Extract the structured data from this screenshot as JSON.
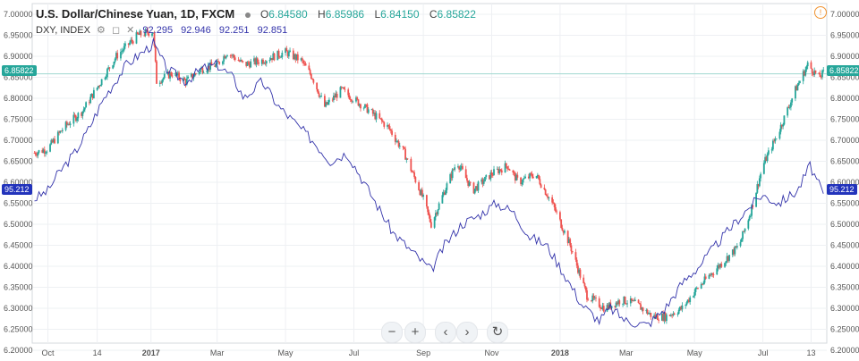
{
  "legend": {
    "symbol": "U.S. Dollar/Chinese Yuan, 1D, FXCM",
    "open_label": "O",
    "open": "6.84580",
    "high_label": "H",
    "high": "6.85986",
    "low_label": "L",
    "low": "6.84150",
    "close_label": "C",
    "close": "6.85822",
    "overlay_name": "DXY, INDEX",
    "overlay_values": [
      "92.295",
      "92.946",
      "92.251",
      "92.851"
    ]
  },
  "last_price_tag": "6.85822",
  "overlay_tag": "95.212",
  "controls": {
    "zoom_out": "−",
    "zoom_in": "+",
    "scroll_left": "‹",
    "scroll_right": "›",
    "reset": "↻"
  },
  "colors": {
    "up": "#26a69a",
    "down": "#ef5350",
    "overlay": "#3333aa",
    "grid": "#eef0f3",
    "axis_text": "#555555"
  },
  "chart_data": {
    "type": "candlestick",
    "yaxis_ticks": [
      "7.00000",
      "6.95000",
      "6.90000",
      "6.85000",
      "6.80000",
      "6.75000",
      "6.70000",
      "6.65000",
      "6.60000",
      "6.55000",
      "6.50000",
      "6.45000",
      "6.40000",
      "6.35000",
      "6.30000",
      "6.25000",
      "6.20000"
    ],
    "xaxis_ticks": [
      "Oct",
      "14",
      "2017",
      "Mar",
      "May",
      "Jul",
      "Sep",
      "Nov",
      "2018",
      "Mar",
      "May",
      "Jul",
      "13"
    ],
    "ylim": [
      6.2,
      7.0
    ],
    "close_series": [
      [
        "2016-09-19",
        6.67
      ],
      [
        "2016-10-01",
        6.68
      ],
      [
        "2016-10-15",
        6.73
      ],
      [
        "2016-11-01",
        6.77
      ],
      [
        "2016-11-15",
        6.83
      ],
      [
        "2016-12-01",
        6.9
      ],
      [
        "2016-12-20",
        6.95
      ],
      [
        "2017-01-03",
        6.96
      ],
      [
        "2017-01-06",
        6.84
      ],
      [
        "2017-01-20",
        6.86
      ],
      [
        "2017-02-01",
        6.84
      ],
      [
        "2017-02-15",
        6.87
      ],
      [
        "2017-03-01",
        6.88
      ],
      [
        "2017-03-10",
        6.91
      ],
      [
        "2017-03-25",
        6.88
      ],
      [
        "2017-04-10",
        6.89
      ],
      [
        "2017-05-01",
        6.91
      ],
      [
        "2017-05-15",
        6.89
      ],
      [
        "2017-05-25",
        6.85
      ],
      [
        "2017-06-05",
        6.78
      ],
      [
        "2017-06-20",
        6.82
      ],
      [
        "2017-06-30",
        6.8
      ],
      [
        "2017-07-15",
        6.77
      ],
      [
        "2017-08-01",
        6.73
      ],
      [
        "2017-08-15",
        6.67
      ],
      [
        "2017-09-01",
        6.56
      ],
      [
        "2017-09-08",
        6.5
      ],
      [
        "2017-09-20",
        6.58
      ],
      [
        "2017-10-01",
        6.65
      ],
      [
        "2017-10-15",
        6.58
      ],
      [
        "2017-11-01",
        6.62
      ],
      [
        "2017-11-15",
        6.64
      ],
      [
        "2017-11-25",
        6.6
      ],
      [
        "2017-12-10",
        6.62
      ],
      [
        "2017-12-25",
        6.55
      ],
      [
        "2018-01-10",
        6.45
      ],
      [
        "2018-01-25",
        6.33
      ],
      [
        "2018-02-10",
        6.3
      ],
      [
        "2018-02-25",
        6.32
      ],
      [
        "2018-03-10",
        6.31
      ],
      [
        "2018-03-25",
        6.28
      ],
      [
        "2018-04-05",
        6.28
      ],
      [
        "2018-04-20",
        6.3
      ],
      [
        "2018-05-01",
        6.34
      ],
      [
        "2018-05-15",
        6.38
      ],
      [
        "2018-05-30",
        6.42
      ],
      [
        "2018-06-10",
        6.45
      ],
      [
        "2018-06-20",
        6.53
      ],
      [
        "2018-07-01",
        6.64
      ],
      [
        "2018-07-15",
        6.72
      ],
      [
        "2018-07-30",
        6.82
      ],
      [
        "2018-08-10",
        6.88
      ],
      [
        "2018-08-20",
        6.85
      ],
      [
        "2018-08-24",
        6.86
      ]
    ],
    "overlay_series": [
      [
        "2016-09-19",
        6.56
      ],
      [
        "2016-10-01",
        6.58
      ],
      [
        "2016-10-10",
        6.62
      ],
      [
        "2016-10-25",
        6.67
      ],
      [
        "2016-11-05",
        6.72
      ],
      [
        "2016-11-20",
        6.8
      ],
      [
        "2016-12-10",
        6.88
      ],
      [
        "2016-12-20",
        6.9
      ],
      [
        "2017-01-03",
        6.93
      ],
      [
        "2017-01-15",
        6.87
      ],
      [
        "2017-02-01",
        6.84
      ],
      [
        "2017-02-15",
        6.87
      ],
      [
        "2017-03-01",
        6.88
      ],
      [
        "2017-03-15",
        6.85
      ],
      [
        "2017-03-25",
        6.8
      ],
      [
        "2017-04-10",
        6.84
      ],
      [
        "2017-04-25",
        6.78
      ],
      [
        "2017-05-10",
        6.74
      ],
      [
        "2017-05-25",
        6.7
      ],
      [
        "2017-06-10",
        6.65
      ],
      [
        "2017-06-25",
        6.67
      ],
      [
        "2017-07-10",
        6.6
      ],
      [
        "2017-07-25",
        6.53
      ],
      [
        "2017-08-05",
        6.48
      ],
      [
        "2017-08-20",
        6.44
      ],
      [
        "2017-09-08",
        6.39
      ],
      [
        "2017-09-20",
        6.45
      ],
      [
        "2017-10-05",
        6.5
      ],
      [
        "2017-10-20",
        6.52
      ],
      [
        "2017-11-05",
        6.55
      ],
      [
        "2017-11-20",
        6.53
      ],
      [
        "2017-12-05",
        6.47
      ],
      [
        "2017-12-20",
        6.45
      ],
      [
        "2018-01-05",
        6.38
      ],
      [
        "2018-01-20",
        6.31
      ],
      [
        "2018-02-05",
        6.27
      ],
      [
        "2018-02-15",
        6.3
      ],
      [
        "2018-03-01",
        6.27
      ],
      [
        "2018-03-20",
        6.26
      ],
      [
        "2018-04-05",
        6.3
      ],
      [
        "2018-04-20",
        6.36
      ],
      [
        "2018-05-05",
        6.4
      ],
      [
        "2018-05-20",
        6.45
      ],
      [
        "2018-06-05",
        6.5
      ],
      [
        "2018-06-15",
        6.53
      ],
      [
        "2018-06-30",
        6.57
      ],
      [
        "2018-07-15",
        6.55
      ],
      [
        "2018-08-01",
        6.58
      ],
      [
        "2018-08-12",
        6.64
      ],
      [
        "2018-08-24",
        6.57
      ]
    ]
  }
}
